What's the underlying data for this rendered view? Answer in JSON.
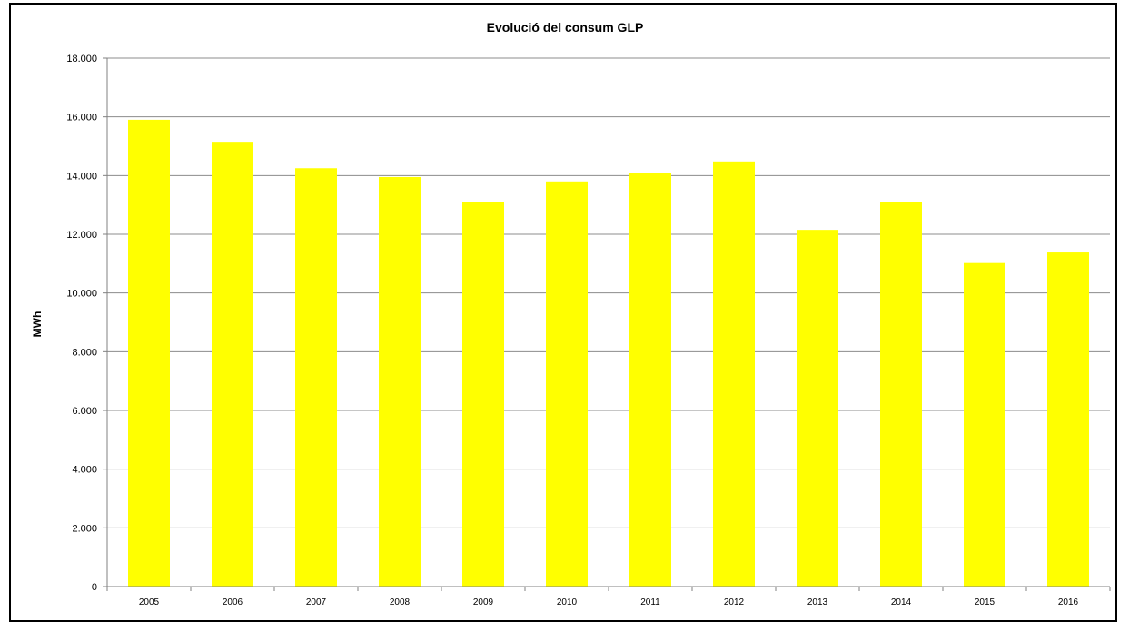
{
  "chart_data": {
    "type": "bar",
    "title": "Evolució del consum  GLP",
    "xlabel": "",
    "ylabel": "MWh",
    "categories": [
      "2005",
      "2006",
      "2007",
      "2008",
      "2009",
      "2010",
      "2011",
      "2012",
      "2013",
      "2014",
      "2015",
      "2016"
    ],
    "values": [
      15900,
      15150,
      14250,
      13950,
      13100,
      13800,
      14100,
      14480,
      12150,
      13100,
      11020,
      11380
    ],
    "ylim": [
      0,
      18000
    ],
    "yticks": [
      0,
      2000,
      4000,
      6000,
      8000,
      10000,
      12000,
      14000,
      16000,
      18000
    ],
    "ytick_labels": [
      "0",
      "2.000",
      "4.000",
      "6.000",
      "8.000",
      "10.000",
      "12.000",
      "14.000",
      "16.000",
      "18.000"
    ],
    "grid": "horizontal",
    "legend": "none",
    "colors": {
      "bar": "#ffff00",
      "grid": "#8c8c8c",
      "axis": "#808080",
      "frame": "#000000"
    }
  }
}
